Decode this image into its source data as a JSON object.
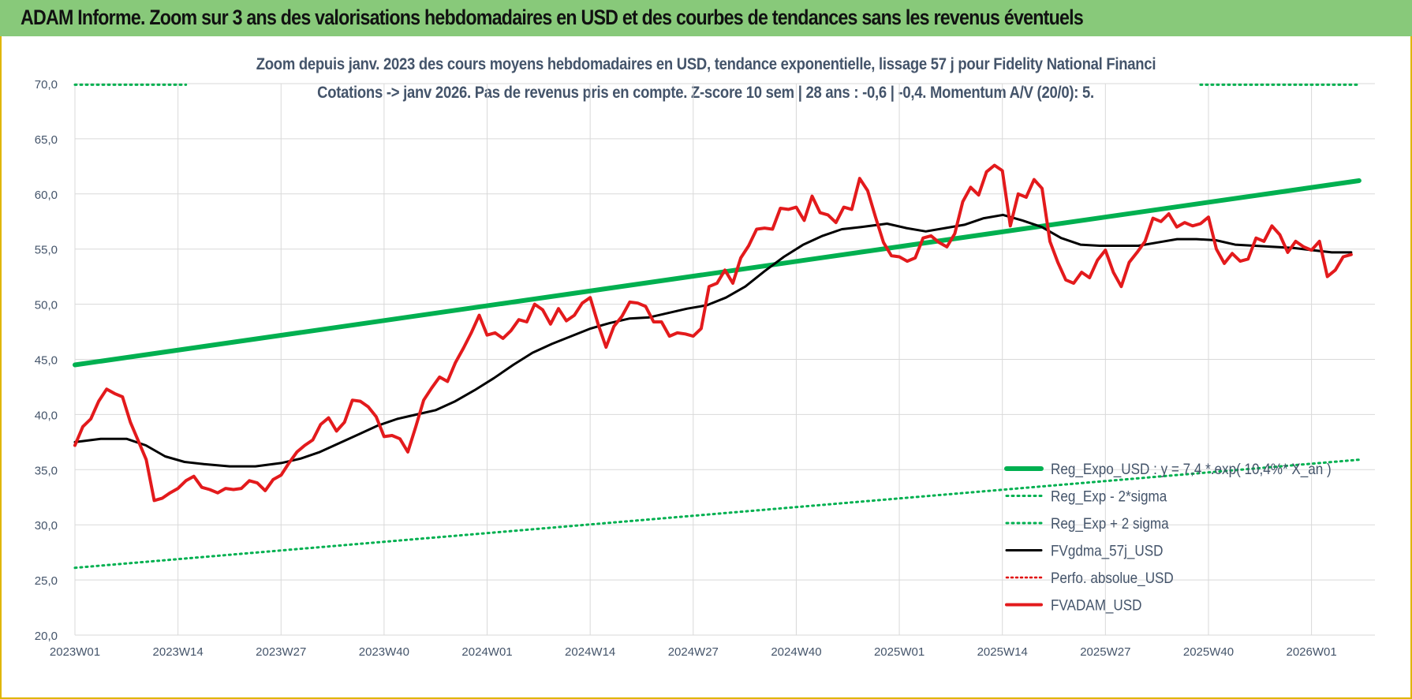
{
  "header": {
    "title": "ADAM Informe. Zoom sur 3 ans des valorisations hebdomadaires en USD et des courbes de tendances sans les revenus éventuels"
  },
  "chart_data": {
    "type": "line",
    "title_line1": "Zoom depuis janv. 2023 des cours moyens hebdomadaires en USD, tendance exponentielle, lissage 57 j pour Fidelity National Financi",
    "title_line2": "Cotations -> janv 2026. Pas de revenus pris en compte. Z-score 10 sem | 28 ans : -0,6 | -0,4. Momentum A/V (20/0): 5.",
    "ylim": [
      20,
      70
    ],
    "y_ticks": [
      "70,0",
      "65,0",
      "60,0",
      "55,0",
      "50,0",
      "45,0",
      "40,0",
      "35,0",
      "30,0",
      "25,0",
      "20,0"
    ],
    "x_tick_labels": [
      "2023W01",
      "2023W14",
      "2023W27",
      "2023W40",
      "2024W01",
      "2024W14",
      "2024W27",
      "2024W40",
      "2025W01",
      "2025W14",
      "2025W27",
      "2025W40",
      "2026W01"
    ],
    "x_count": 163,
    "grid": true,
    "legend_position": "bottom-right",
    "colors": {
      "trend": "#00b050",
      "sigma": "#00b050",
      "ma": "#000000",
      "perf": "#e00000",
      "price": "#e31a1c"
    },
    "series": [
      {
        "name": "Reg_Expo_USD : y = 7,4 *.exp( 10,4%* X_an )",
        "style": "solid-thick",
        "points": [
          [
            0,
            44.5
          ],
          [
            162,
            61.2
          ]
        ]
      },
      {
        "name": "Reg_Exp - 2*sigma",
        "style": "dotted",
        "points": [
          [
            0,
            26.1
          ],
          [
            162,
            35.9
          ]
        ]
      },
      {
        "name": "Reg_Exp + 2 sigma",
        "style": "dotted",
        "points": [
          [
            0,
            69.9
          ],
          [
            14,
            69.9
          ],
          [
            142,
            69.9
          ],
          [
            162,
            69.9
          ]
        ],
        "segments": [
          [
            0,
            14
          ],
          [
            142,
            162
          ]
        ]
      },
      {
        "name": "FVgdma_57j_USD",
        "style": "solid",
        "points": [
          [
            0,
            37.5
          ],
          [
            4,
            37.8
          ],
          [
            8,
            37.8
          ],
          [
            11,
            37.2
          ],
          [
            14,
            36.2
          ],
          [
            17,
            35.7
          ],
          [
            20,
            35.5
          ],
          [
            24,
            35.3
          ],
          [
            28,
            35.3
          ],
          [
            32,
            35.6
          ],
          [
            35,
            36
          ],
          [
            38,
            36.6
          ],
          [
            41,
            37.4
          ],
          [
            44,
            38.2
          ],
          [
            47,
            39
          ],
          [
            50,
            39.6
          ],
          [
            53,
            40
          ],
          [
            56,
            40.4
          ],
          [
            59,
            41.2
          ],
          [
            62,
            42.2
          ],
          [
            65,
            43.3
          ],
          [
            68,
            44.5
          ],
          [
            71,
            45.6
          ],
          [
            74,
            46.4
          ],
          [
            77,
            47.1
          ],
          [
            80,
            47.8
          ],
          [
            83,
            48.3
          ],
          [
            86,
            48.7
          ],
          [
            89,
            48.8
          ],
          [
            92,
            49.2
          ],
          [
            95,
            49.6
          ],
          [
            98,
            49.9
          ],
          [
            101,
            50.6
          ],
          [
            104,
            51.6
          ],
          [
            107,
            53
          ],
          [
            110,
            54.3
          ],
          [
            113,
            55.4
          ],
          [
            116,
            56.2
          ],
          [
            119,
            56.8
          ],
          [
            122,
            57
          ],
          [
            126,
            57.3
          ],
          [
            129,
            56.9
          ],
          [
            132,
            56.6
          ],
          [
            135,
            56.9
          ],
          [
            138,
            57.2
          ],
          [
            141,
            57.8
          ],
          [
            144,
            58.1
          ],
          [
            147,
            57.6
          ],
          [
            150,
            57
          ],
          [
            153,
            56
          ],
          [
            156,
            55.4
          ],
          [
            159,
            55.3
          ],
          [
            162,
            55.3
          ],
          [
            165,
            55.3
          ],
          [
            168,
            55.6
          ],
          [
            171,
            55.9
          ],
          [
            174,
            55.9
          ],
          [
            177,
            55.8
          ],
          [
            180,
            55.4
          ],
          [
            183,
            55.3
          ],
          [
            186,
            55.2
          ],
          [
            189,
            55.1
          ],
          [
            192,
            54.9
          ],
          [
            195,
            54.7
          ],
          [
            198,
            54.7
          ]
        ]
      },
      {
        "name": "Perfo. absolue_USD",
        "style": "dotted",
        "points": []
      },
      {
        "name": "FVADAM_USD",
        "style": "solid",
        "points": [
          [
            0,
            37.2
          ],
          [
            1,
            38.9
          ],
          [
            2,
            39.6
          ],
          [
            3,
            41.2
          ],
          [
            4,
            42.3
          ],
          [
            5,
            41.9
          ],
          [
            6,
            41.6
          ],
          [
            7,
            39.3
          ],
          [
            8,
            37.6
          ],
          [
            9,
            35.9
          ],
          [
            10,
            32.2
          ],
          [
            11,
            32.4
          ],
          [
            12,
            32.9
          ],
          [
            13,
            33.3
          ],
          [
            14,
            34
          ],
          [
            15,
            34.4
          ],
          [
            16,
            33.4
          ],
          [
            17,
            33.2
          ],
          [
            18,
            32.9
          ],
          [
            19,
            33.3
          ],
          [
            20,
            33.2
          ],
          [
            21,
            33.3
          ],
          [
            22,
            34
          ],
          [
            23,
            33.8
          ],
          [
            24,
            33.1
          ],
          [
            25,
            34.1
          ],
          [
            26,
            34.5
          ],
          [
            27,
            35.6
          ],
          [
            28,
            36.6
          ],
          [
            29,
            37.2
          ],
          [
            30,
            37.7
          ],
          [
            31,
            39.1
          ],
          [
            32,
            39.7
          ],
          [
            33,
            38.5
          ],
          [
            34,
            39.3
          ],
          [
            35,
            41.3
          ],
          [
            36,
            41.2
          ],
          [
            37,
            40.7
          ],
          [
            38,
            39.8
          ],
          [
            39,
            38
          ],
          [
            40,
            38.1
          ],
          [
            41,
            37.8
          ],
          [
            42,
            36.6
          ],
          [
            43,
            38.9
          ],
          [
            44,
            41.3
          ],
          [
            45,
            42.4
          ],
          [
            46,
            43.4
          ],
          [
            47,
            43
          ],
          [
            48,
            44.7
          ],
          [
            49,
            46
          ],
          [
            50,
            47.4
          ],
          [
            51,
            49
          ],
          [
            52,
            47.2
          ],
          [
            53,
            47.4
          ],
          [
            54,
            46.9
          ],
          [
            55,
            47.6
          ],
          [
            56,
            48.6
          ],
          [
            57,
            48.4
          ],
          [
            58,
            50
          ],
          [
            59,
            49.5
          ],
          [
            60,
            48.2
          ],
          [
            61,
            49.6
          ],
          [
            62,
            48.5
          ],
          [
            63,
            49
          ],
          [
            64,
            50.1
          ],
          [
            65,
            50.6
          ],
          [
            66,
            48.2
          ],
          [
            67,
            46.1
          ],
          [
            68,
            48
          ],
          [
            69,
            48.9
          ],
          [
            70,
            50.2
          ],
          [
            71,
            50.1
          ],
          [
            72,
            49.8
          ],
          [
            73,
            48.4
          ],
          [
            74,
            48.4
          ],
          [
            75,
            47.1
          ],
          [
            76,
            47.4
          ],
          [
            77,
            47.3
          ],
          [
            78,
            47.1
          ],
          [
            79,
            47.8
          ],
          [
            80,
            51.6
          ],
          [
            81,
            51.9
          ],
          [
            82,
            53.1
          ],
          [
            83,
            51.9
          ],
          [
            84,
            54.2
          ],
          [
            85,
            55.3
          ],
          [
            86,
            56.8
          ],
          [
            87,
            56.9
          ],
          [
            88,
            56.8
          ],
          [
            89,
            58.7
          ],
          [
            90,
            58.6
          ],
          [
            91,
            58.8
          ],
          [
            92,
            57.6
          ],
          [
            93,
            59.8
          ],
          [
            94,
            58.3
          ],
          [
            95,
            58.1
          ],
          [
            96,
            57.4
          ],
          [
            97,
            58.8
          ],
          [
            98,
            58.6
          ],
          [
            99,
            61.4
          ],
          [
            100,
            60.3
          ],
          [
            101,
            57.9
          ],
          [
            102,
            55.6
          ],
          [
            103,
            54.4
          ],
          [
            104,
            54.3
          ],
          [
            105,
            53.9
          ],
          [
            106,
            54.2
          ],
          [
            107,
            56
          ],
          [
            108,
            56.2
          ],
          [
            109,
            55.6
          ],
          [
            110,
            55.2
          ],
          [
            111,
            56.4
          ],
          [
            112,
            59.3
          ],
          [
            113,
            60.6
          ],
          [
            114,
            59.9
          ],
          [
            115,
            62
          ],
          [
            116,
            62.6
          ],
          [
            117,
            62.1
          ],
          [
            118,
            57.1
          ],
          [
            119,
            60
          ],
          [
            120,
            59.7
          ],
          [
            121,
            61.3
          ],
          [
            122,
            60.5
          ],
          [
            123,
            55.7
          ],
          [
            124,
            53.8
          ],
          [
            125,
            52.2
          ],
          [
            126,
            51.9
          ],
          [
            127,
            52.9
          ],
          [
            128,
            52.4
          ],
          [
            129,
            54
          ],
          [
            130,
            54.9
          ],
          [
            131,
            52.9
          ],
          [
            132,
            51.6
          ],
          [
            133,
            53.8
          ],
          [
            134,
            54.7
          ],
          [
            135,
            55.7
          ],
          [
            136,
            57.8
          ],
          [
            137,
            57.5
          ],
          [
            138,
            58.2
          ],
          [
            139,
            57
          ],
          [
            140,
            57.4
          ],
          [
            141,
            57.1
          ],
          [
            142,
            57.3
          ],
          [
            143,
            57.9
          ],
          [
            144,
            55
          ],
          [
            145,
            53.7
          ],
          [
            146,
            54.6
          ],
          [
            147,
            53.9
          ],
          [
            148,
            54.1
          ],
          [
            149,
            56
          ],
          [
            150,
            55.7
          ],
          [
            151,
            57.1
          ],
          [
            152,
            56.3
          ],
          [
            153,
            54.7
          ],
          [
            154,
            55.7
          ],
          [
            155,
            55.2
          ],
          [
            156,
            54.9
          ],
          [
            157,
            55.7
          ],
          [
            158,
            52.5
          ],
          [
            159,
            53.1
          ],
          [
            160,
            54.3
          ],
          [
            161,
            54.5
          ]
        ]
      }
    ]
  }
}
